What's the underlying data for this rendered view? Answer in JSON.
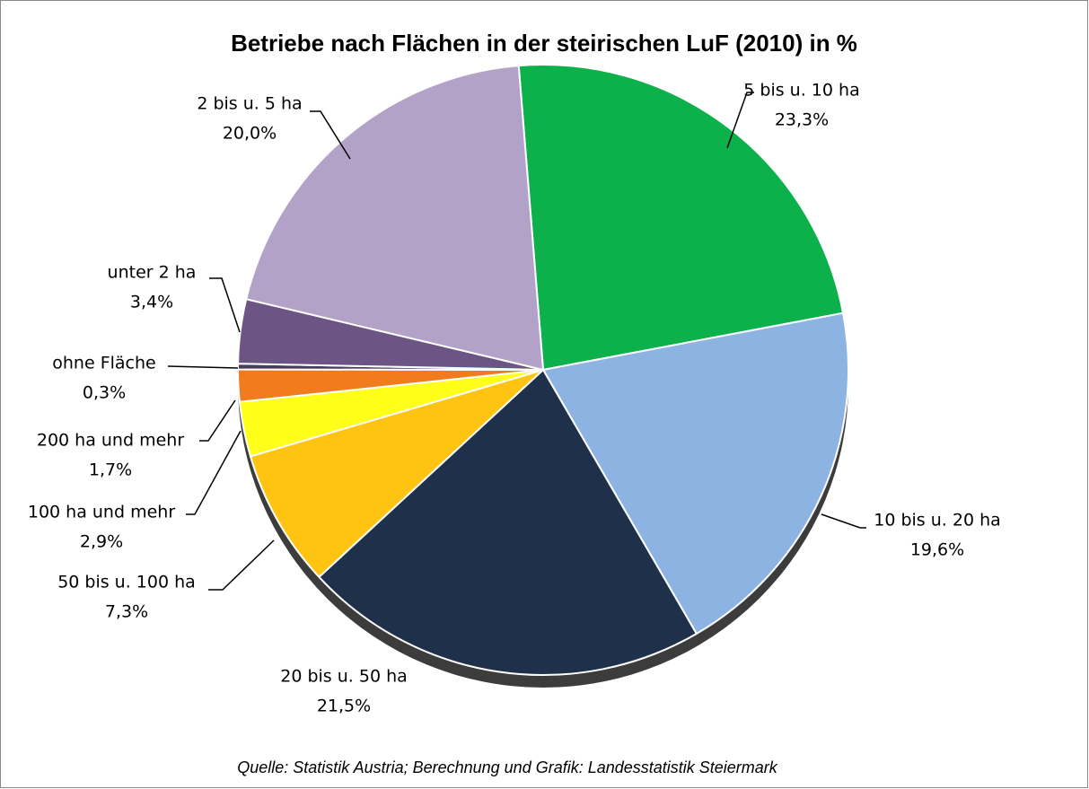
{
  "chart_data": {
    "type": "pie",
    "title": "Betriebe nach Flächen in der steirischen LuF (2010) in %",
    "categories": [
      "5 bis u. 10 ha",
      "10 bis u. 20 ha",
      "20 bis u. 50 ha",
      "50 bis u. 100 ha",
      "100 ha und mehr",
      "200 ha und mehr",
      "ohne Fläche",
      "unter 2 ha",
      "2 bis u. 5 ha"
    ],
    "values": [
      23.3,
      19.6,
      21.5,
      7.3,
      2.9,
      1.7,
      0.3,
      3.4,
      20.0
    ],
    "value_labels": [
      "23,3%",
      "19,6%",
      "21,5%",
      "7,3%",
      "2,9%",
      "1,7%",
      "0,3%",
      "3,4%",
      "20,0%"
    ],
    "colors": [
      "#0db14b",
      "#8db3e2",
      "#1f304b",
      "#ffc312",
      "#ffff1a",
      "#f07c1e",
      "#4a3b57",
      "#6c5585",
      "#b3a2c7"
    ],
    "source": "Quelle: Statistik Austria; Berechnung und Grafik: Landesstatistik Steiermark"
  }
}
